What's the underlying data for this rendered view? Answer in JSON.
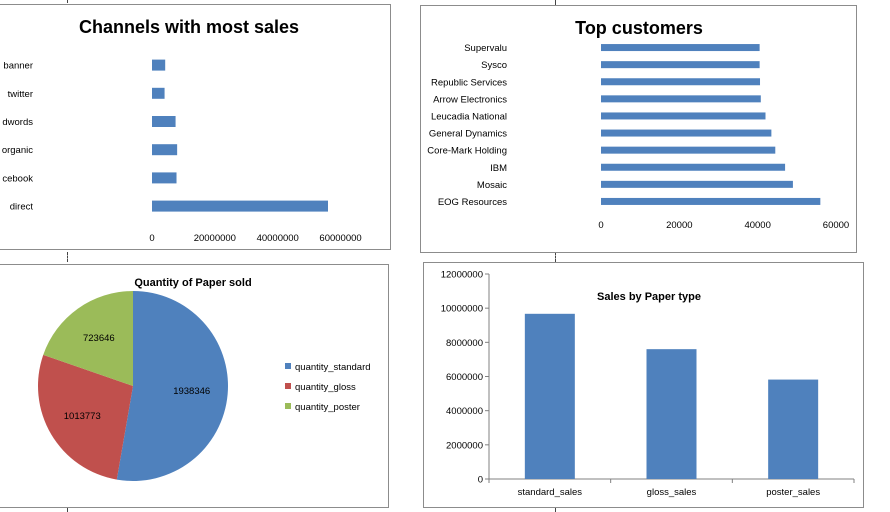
{
  "colors": {
    "bar": "#4f81bd",
    "standard": "#4f81bd",
    "gloss": "#c0504d",
    "poster": "#9bbb59",
    "axis": "#808080"
  },
  "chart_data": [
    {
      "id": "channels",
      "type": "bar",
      "orientation": "horizontal",
      "title": "Channels with most sales",
      "categories": [
        "banner",
        "twitter",
        "adwords",
        "organic",
        "facebook",
        "direct"
      ],
      "category_labels_visible": [
        "banner",
        "twitter",
        "dwords",
        "organic",
        "cebook",
        "direct"
      ],
      "values": [
        4200000,
        4000000,
        7500000,
        8000000,
        7800000,
        56000000
      ],
      "xlim": [
        0,
        70000000
      ],
      "xticks": [
        0,
        20000000,
        40000000,
        60000000
      ],
      "xtick_labels": [
        "0",
        "20000000",
        "40000000",
        "60000000"
      ],
      "grid": false,
      "legend": "none"
    },
    {
      "id": "customers",
      "type": "bar",
      "orientation": "horizontal",
      "title": "Top customers",
      "categories": [
        "Supervalu",
        "Sysco",
        "Republic Services",
        "Arrow Electronics",
        "Leucadia National",
        "General Dynamics",
        "Core-Mark Holding",
        "IBM",
        "Mosaic",
        "EOG Resources"
      ],
      "values": [
        40500,
        40500,
        40600,
        40800,
        42000,
        43500,
        44500,
        47000,
        49000,
        56000
      ],
      "xlim": [
        0,
        60000
      ],
      "xticks": [
        0,
        20000,
        40000,
        60000
      ],
      "xtick_labels": [
        "0",
        "20000",
        "40000",
        "60000"
      ],
      "grid": false,
      "legend": "none"
    },
    {
      "id": "paper_quantity",
      "type": "pie",
      "title": "Quantity of Paper sold",
      "series": [
        {
          "name": "quantity_standard",
          "value": 1938346,
          "label": "1938346",
          "color": "#4f81bd"
        },
        {
          "name": "quantity_gloss",
          "value": 1013773,
          "label": "1013773",
          "color": "#c0504d"
        },
        {
          "name": "quantity_poster",
          "value": 723646,
          "label": "723646",
          "color": "#9bbb59"
        }
      ],
      "legend": "right"
    },
    {
      "id": "paper_sales",
      "type": "bar",
      "orientation": "vertical",
      "title": "Sales by Paper type",
      "categories": [
        "standard_sales",
        "gloss_sales",
        "poster_sales"
      ],
      "values": [
        9670000,
        7600000,
        5820000
      ],
      "ylim": [
        0,
        12000000
      ],
      "yticks": [
        0,
        2000000,
        4000000,
        6000000,
        8000000,
        10000000,
        12000000
      ],
      "ytick_labels": [
        "0",
        "2000000",
        "4000000",
        "6000000",
        "8000000",
        "10000000",
        "12000000"
      ],
      "grid": false,
      "legend": "none"
    }
  ]
}
